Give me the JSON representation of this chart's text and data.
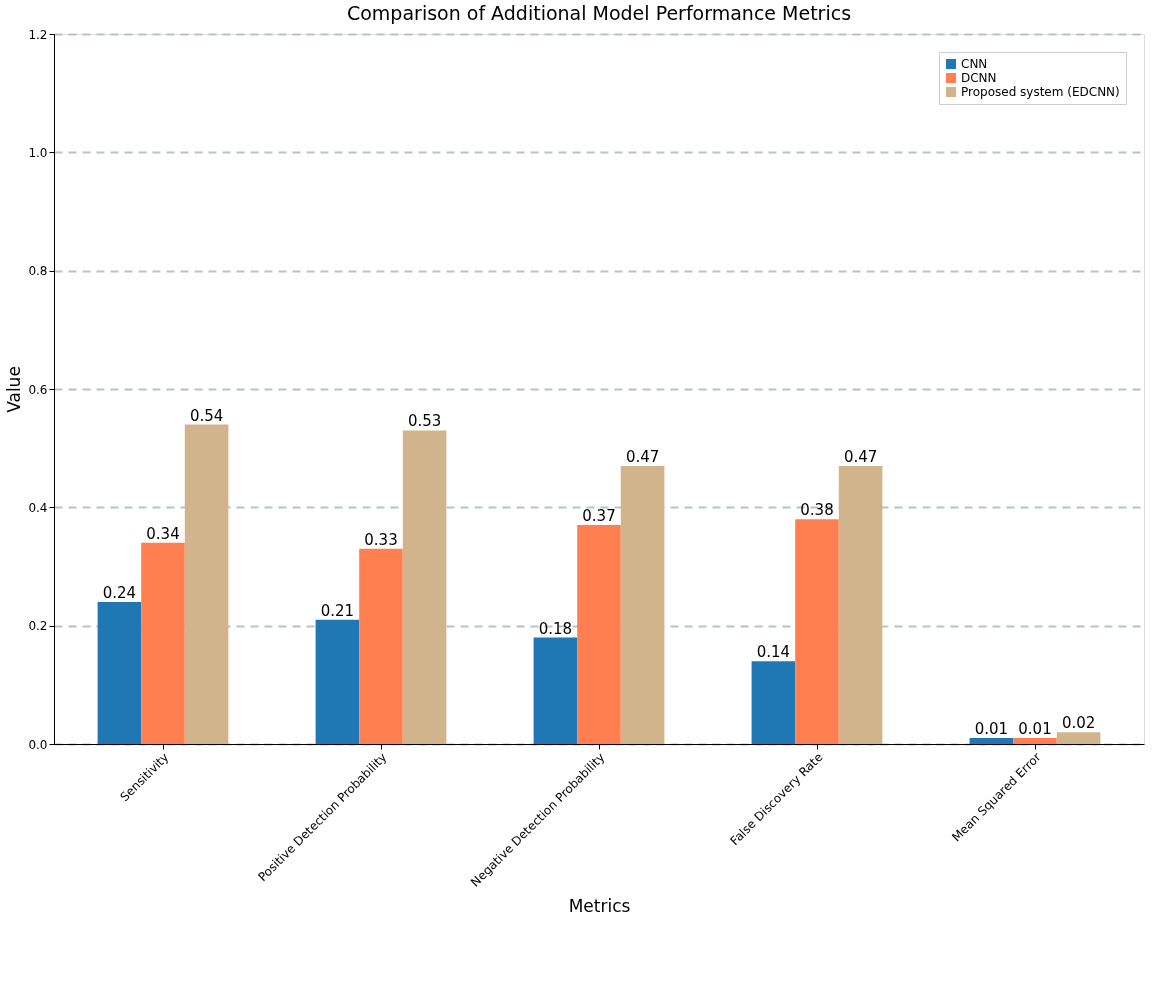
{
  "chart_data": {
    "type": "bar",
    "title": "Comparison of Additional Model Performance Metrics",
    "xlabel": "Metrics",
    "ylabel": "Value",
    "categories": [
      "Sensitivity",
      "Positive Detection Probability",
      "Negative Detection Probability",
      "False Discovery Rate",
      "Mean Squared Error"
    ],
    "series": [
      {
        "name": "CNN",
        "color": "#1f77b4",
        "values": [
          0.24,
          0.21,
          0.18,
          0.14,
          0.01
        ]
      },
      {
        "name": "DCNN",
        "color": "#ff7f50",
        "values": [
          0.34,
          0.33,
          0.37,
          0.38,
          0.01
        ]
      },
      {
        "name": "Proposed system (EDCNN)",
        "color": "#d2b48c",
        "values": [
          0.54,
          0.53,
          0.47,
          0.47,
          0.02
        ]
      }
    ],
    "ylim": [
      0,
      1.2
    ],
    "yticks": [
      {
        "value": 0,
        "label": "0.0"
      },
      0.2,
      0.4,
      0.6,
      0.8,
      {
        "value": 1,
        "label": "1.0"
      },
      1.2
    ],
    "grid": "y",
    "legend": "top right",
    "data_labels": true
  }
}
